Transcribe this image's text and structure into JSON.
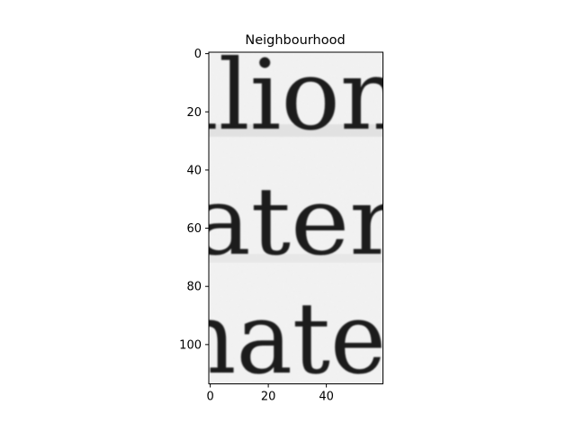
{
  "chart_data": {
    "type": "heatmap",
    "title": "Neighbourhood",
    "xlabel": "",
    "ylabel": "",
    "xlim": [
      -0.5,
      59.5
    ],
    "ylim": [
      113.5,
      -0.5
    ],
    "x_ticks": [
      0,
      20,
      40
    ],
    "y_ticks": [
      0,
      20,
      40,
      60,
      80,
      100
    ],
    "grid": false,
    "colormap": "gray",
    "image_content": {
      "kind": "grayscale crop of scanned printed text",
      "text_lines": [
        "llion",
        "ater",
        "nate"
      ]
    }
  },
  "colors": {
    "background": "#ffffff",
    "image_paper": "#f0f0f0",
    "ink": "#1a1a1a",
    "axes": "#000000"
  }
}
